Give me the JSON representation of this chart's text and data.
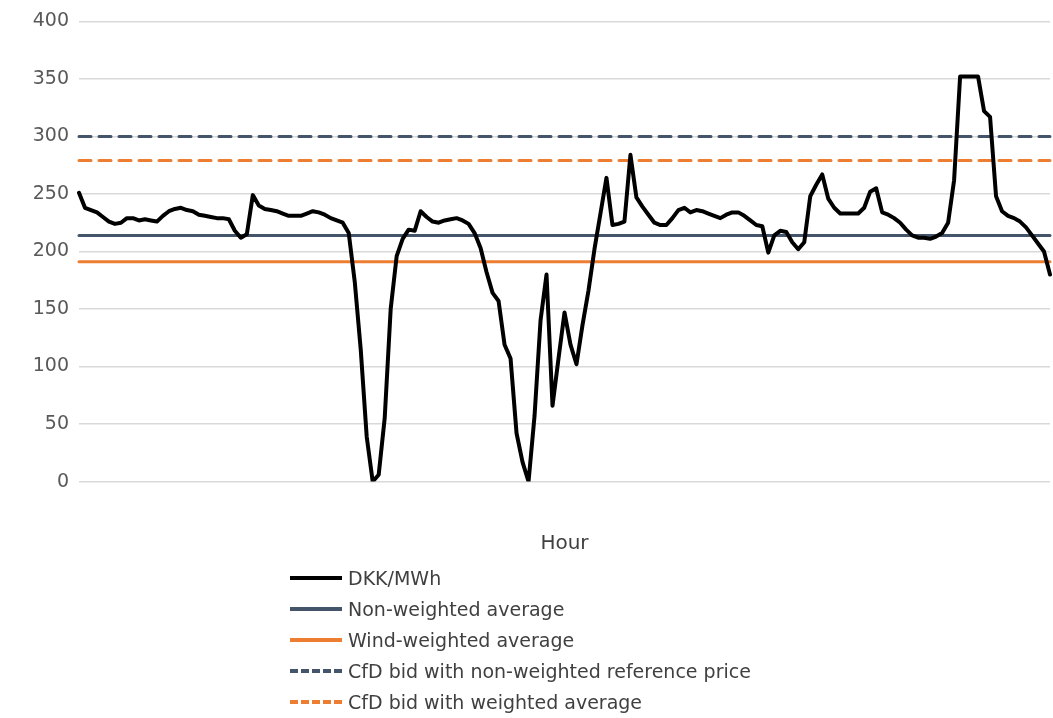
{
  "chart_data": {
    "type": "line",
    "xlabel": "Hour",
    "categories": [
      null,
      null,
      null,
      null,
      null,
      null,
      null,
      null,
      null,
      null,
      null,
      null,
      null,
      null,
      null,
      null,
      null,
      null,
      null,
      null,
      null,
      null,
      null,
      null,
      null,
      null,
      null,
      null,
      null,
      null,
      null,
      null,
      null,
      null,
      null,
      null,
      null,
      null,
      null,
      null,
      null,
      null,
      null,
      null,
      null,
      null,
      null,
      null,
      null,
      null,
      null,
      null,
      null,
      null,
      null,
      null,
      null,
      null,
      null,
      null,
      null,
      null,
      null,
      null,
      null,
      null,
      null,
      null,
      null,
      null,
      null,
      null,
      null,
      null,
      null,
      null,
      null,
      null,
      null,
      null,
      null,
      null,
      null,
      null,
      null,
      null,
      null,
      null,
      null,
      null,
      null,
      null,
      null,
      null,
      null,
      null,
      null,
      null,
      null,
      null,
      null,
      null,
      null,
      null,
      null,
      null,
      null,
      null,
      null,
      null,
      null,
      null,
      null,
      null,
      null,
      null,
      null,
      null,
      null,
      null,
      null,
      null,
      null,
      null,
      null,
      null,
      null,
      null,
      null,
      null,
      null,
      null,
      null,
      null,
      null,
      null,
      null,
      null,
      null,
      null,
      null,
      null,
      null,
      null,
      null,
      null,
      null,
      null,
      null,
      null,
      null,
      null,
      null,
      null,
      null,
      null,
      null,
      null,
      null,
      null,
      null,
      null,
      null
    ],
    "series": [
      {
        "name": "DKK/MWh",
        "color": "#000000",
        "values": [
          251,
          238,
          236,
          234,
          230,
          226,
          224,
          225,
          229,
          229,
          227,
          228,
          227,
          226,
          231,
          235,
          237,
          238,
          236,
          235,
          232,
          231,
          230,
          229,
          229,
          228,
          218,
          212,
          215,
          249,
          240,
          237,
          236,
          235,
          233,
          231,
          231,
          231,
          233,
          235,
          234,
          232,
          229,
          227,
          225,
          216,
          174,
          115,
          39,
          0,
          6,
          55,
          150,
          196,
          211,
          219,
          218,
          235,
          230,
          226,
          225,
          227,
          228,
          229,
          227,
          224,
          216,
          203,
          182,
          164,
          157,
          119,
          107,
          42,
          17,
          0,
          57,
          140,
          180,
          66,
          107,
          147,
          119,
          102,
          136,
          166,
          202,
          233,
          264,
          223,
          224,
          226,
          284,
          247,
          239,
          232,
          225,
          223,
          223,
          229,
          236,
          238,
          234,
          236,
          235,
          233,
          231,
          229,
          232,
          234,
          234,
          231,
          227,
          223,
          222,
          199,
          214,
          218,
          217,
          208,
          202,
          208,
          248,
          258,
          267,
          246,
          238,
          233,
          233,
          233,
          233,
          238,
          252,
          255,
          234,
          232,
          229,
          225,
          219,
          214,
          212,
          212,
          211,
          213,
          216,
          225,
          262,
          352,
          352,
          352,
          352,
          322,
          317,
          248,
          235,
          231,
          229,
          226,
          221,
          214,
          207,
          200,
          180
        ]
      }
    ],
    "ref_lines": [
      {
        "axis": "y",
        "value": 214,
        "label": "Non-weighted average",
        "color": "#44546a",
        "line_style": "solid"
      },
      {
        "axis": "y",
        "value": 191,
        "label": "Wind-weighted average",
        "color": "#ed7d31",
        "line_style": "solid"
      },
      {
        "axis": "y",
        "value": 300,
        "label": "CfD bid with non-weighted reference price",
        "color": "#44546a",
        "line_style": "dashed"
      },
      {
        "axis": "y",
        "value": 279,
        "label": "CfD bid with weighted average",
        "color": "#ed7d31",
        "line_style": "dashed"
      }
    ],
    "ylim": [
      0,
      400
    ],
    "yticks": [
      0,
      50,
      100,
      150,
      200,
      250,
      300,
      350,
      400
    ],
    "grid": "y",
    "legend": "bottom",
    "marker": "none",
    "line_style": "solid"
  }
}
